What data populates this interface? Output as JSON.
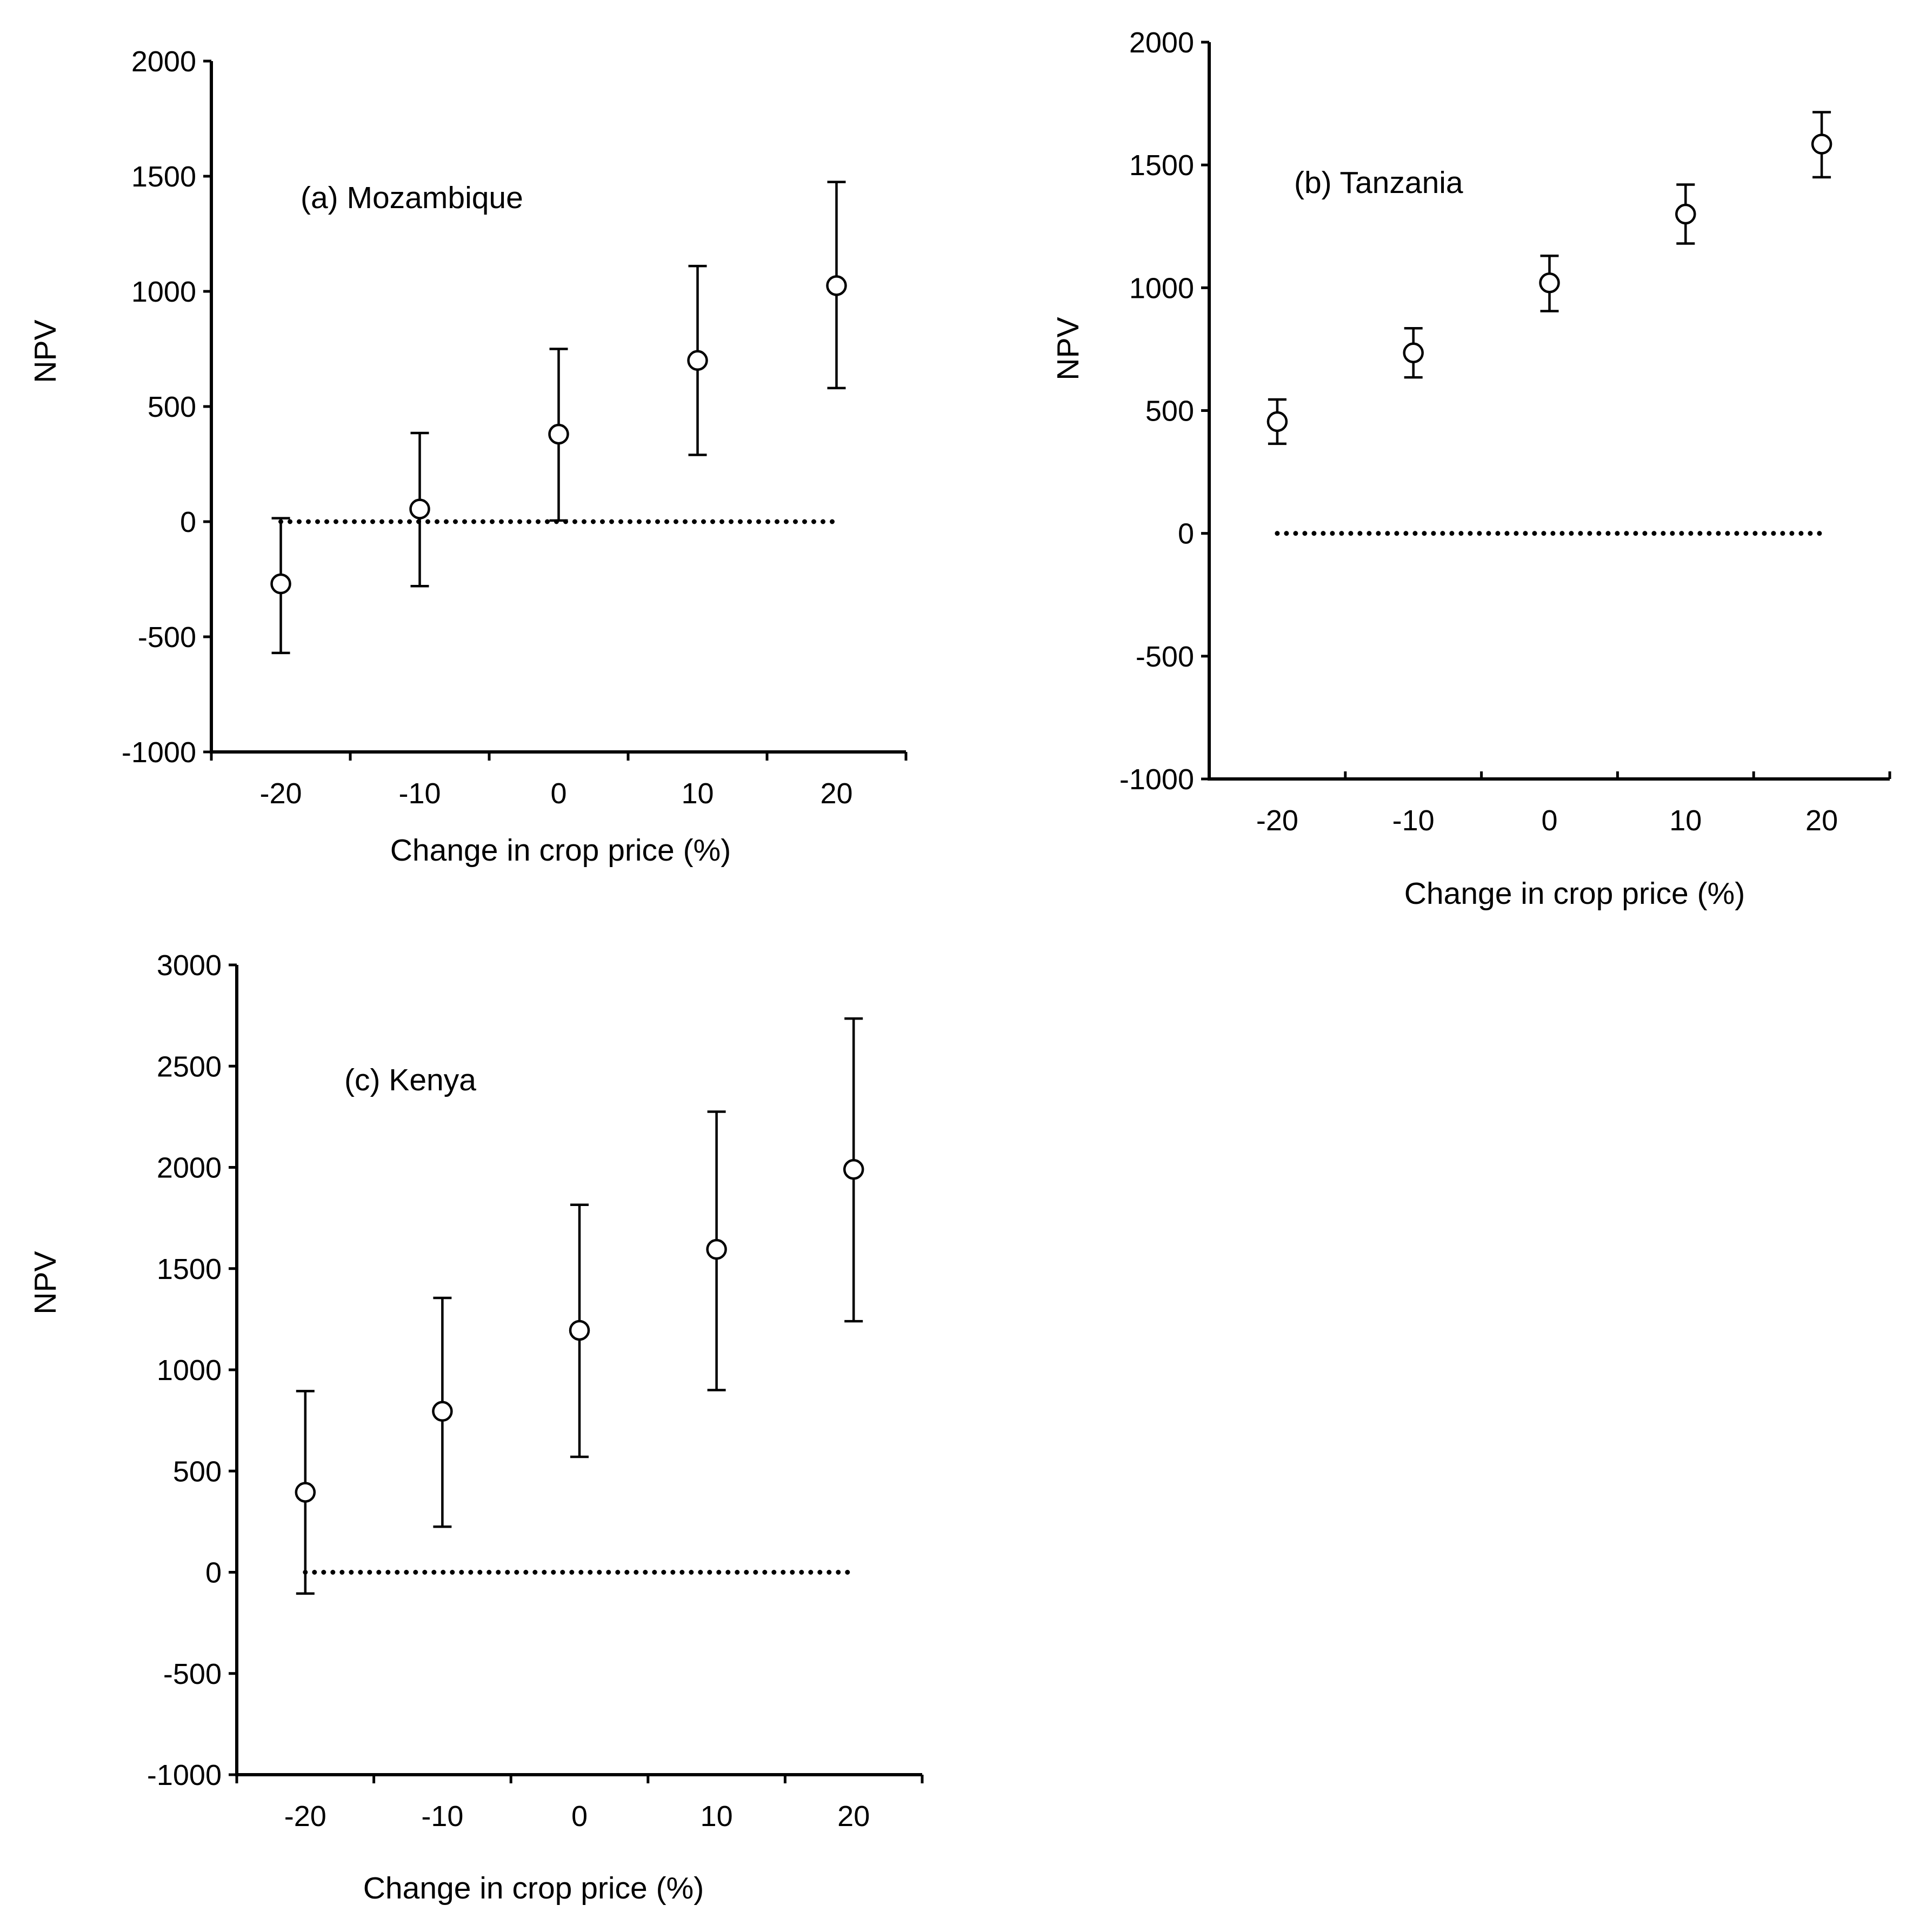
{
  "chart_data": [
    {
      "type": "scatter",
      "panel_label": "a",
      "country": "Mozambique",
      "title": "(a) Mozambique",
      "xlabel": "Change in crop price (%)",
      "ylabel": "NPV",
      "x_tick_labels": [
        "-20",
        "-10",
        "0",
        "10",
        "20"
      ],
      "y_tick_labels": [
        "-1000",
        "-500",
        "0",
        "500",
        "1000",
        "1500",
        "2000"
      ],
      "ylim": [
        -1000,
        2000
      ],
      "x": [
        -20,
        -10,
        0,
        10,
        20
      ],
      "y": [
        -270,
        55,
        380,
        700,
        1025
      ],
      "y_err_low": [
        -570,
        -280,
        5,
        290,
        580
      ],
      "y_err_high": [
        15,
        385,
        750,
        1110,
        1475
      ],
      "reference_line": {
        "y": 0,
        "x_start": -20,
        "x_end": 20,
        "style": "dotted"
      }
    },
    {
      "type": "scatter",
      "panel_label": "b",
      "country": "Tanzania",
      "title": "(b) Tanzania",
      "xlabel": "Change in crop price (%)",
      "ylabel": "NPV",
      "x_tick_labels": [
        "-20",
        "-10",
        "0",
        "10",
        "20"
      ],
      "y_tick_labels": [
        "-1000",
        "-500",
        "0",
        "500",
        "1000",
        "1500",
        "2000"
      ],
      "ylim": [
        -1000,
        2000
      ],
      "x": [
        -20,
        -10,
        0,
        10,
        20
      ],
      "y": [
        455,
        735,
        1020,
        1300,
        1585
      ],
      "y_err_low": [
        365,
        635,
        905,
        1180,
        1450
      ],
      "y_err_high": [
        545,
        835,
        1130,
        1420,
        1715
      ],
      "reference_line": {
        "y": 0,
        "x_start": -20,
        "x_end": 20,
        "style": "dotted"
      }
    },
    {
      "type": "scatter",
      "panel_label": "c",
      "country": "Kenya",
      "title": "(c) Kenya",
      "xlabel": "Change in crop price (%)",
      "ylabel": "NPV",
      "x_tick_labels": [
        "-20",
        "-10",
        "0",
        "10",
        "20"
      ],
      "y_tick_labels": [
        "-1000",
        "-500",
        "0",
        "500",
        "1000",
        "1500",
        "2000",
        "2500",
        "3000"
      ],
      "ylim": [
        -1000,
        3000
      ],
      "x": [
        -20,
        -10,
        0,
        10,
        20
      ],
      "y": [
        395,
        795,
        1195,
        1595,
        1990
      ],
      "y_err_low": [
        -105,
        225,
        570,
        900,
        1240
      ],
      "y_err_high": [
        895,
        1355,
        1815,
        2275,
        2735
      ],
      "reference_line": {
        "y": 0,
        "x_start": -20,
        "x_end": 20,
        "style": "dotted"
      }
    }
  ]
}
